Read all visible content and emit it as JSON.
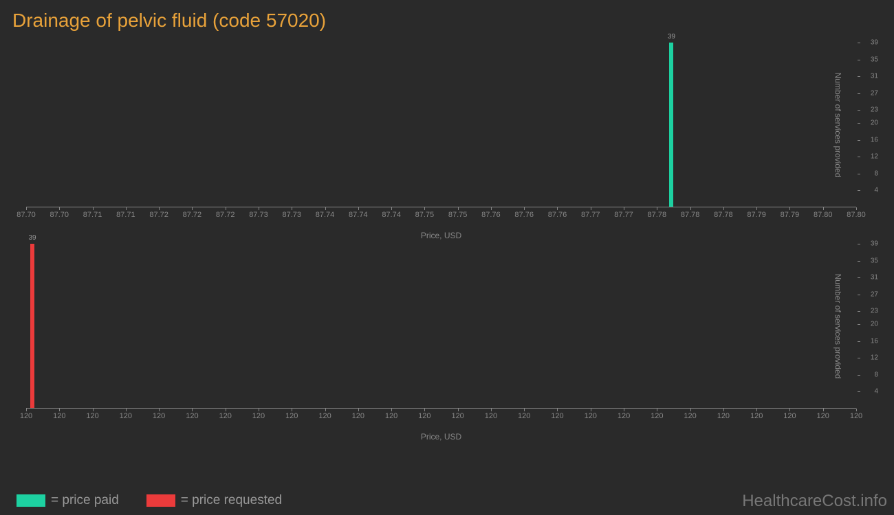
{
  "title": "Drainage of pelvic fluid (code 57020)",
  "background_color": "#2a2a2a",
  "title_color": "#e8a23a",
  "axis_color": "#888888",
  "tick_label_color": "#888888",
  "chart1": {
    "type": "bar",
    "bar_color": "#1dd1a1",
    "bar_value": 39,
    "bar_label": "39",
    "bar_x_position_pct": 77.5,
    "x_label": "Price, USD",
    "y_label": "Number of services provided",
    "x_ticks": [
      "87.70",
      "87.70",
      "87.71",
      "87.71",
      "87.72",
      "87.72",
      "87.72",
      "87.73",
      "87.73",
      "87.74",
      "87.74",
      "87.74",
      "87.75",
      "87.75",
      "87.76",
      "87.76",
      "87.76",
      "87.77",
      "87.77",
      "87.78",
      "87.78",
      "87.78",
      "87.79",
      "87.79",
      "87.80",
      "87.80"
    ],
    "y_ticks": [
      4,
      8,
      12,
      16,
      20,
      23,
      27,
      31,
      35,
      39
    ],
    "y_max": 39
  },
  "chart2": {
    "type": "bar",
    "bar_color": "#eb3b3b",
    "bar_value": 39,
    "bar_label": "39",
    "bar_x_position_pct": 0.5,
    "x_label": "Price, USD",
    "y_label": "Number of services provided",
    "x_ticks": [
      "120",
      "120",
      "120",
      "120",
      "120",
      "120",
      "120",
      "120",
      "120",
      "120",
      "120",
      "120",
      "120",
      "120",
      "120",
      "120",
      "120",
      "120",
      "120",
      "120",
      "120",
      "120",
      "120",
      "120",
      "120",
      "120"
    ],
    "y_ticks": [
      4,
      8,
      12,
      16,
      20,
      23,
      27,
      31,
      35,
      39
    ],
    "y_max": 39
  },
  "legend": {
    "paid": {
      "color": "#1dd1a1",
      "label": "= price paid"
    },
    "requested": {
      "color": "#eb3b3b",
      "label": "= price requested"
    }
  },
  "watermark": "HealthcareCost.info"
}
